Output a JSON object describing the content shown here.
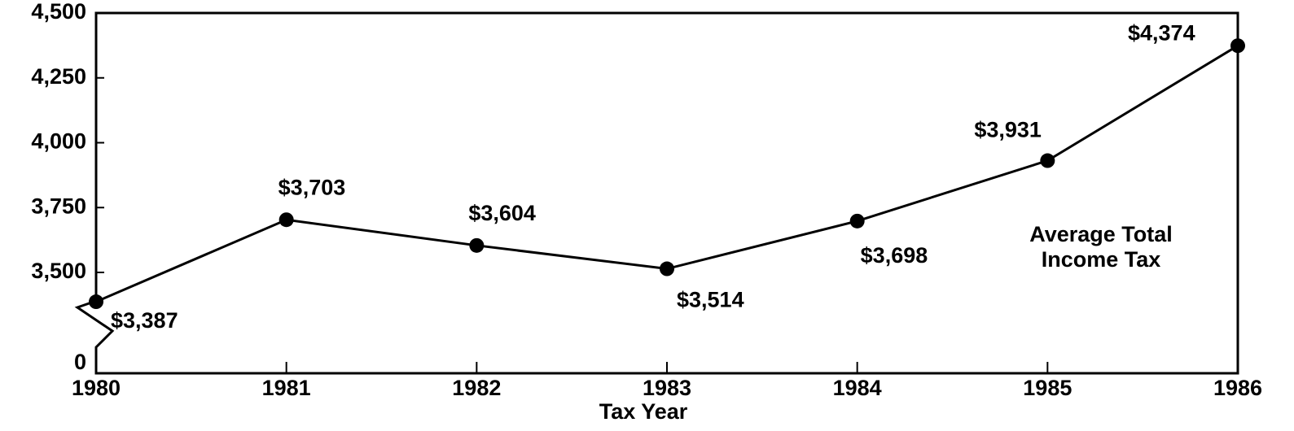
{
  "chart_data": {
    "type": "line",
    "x": [
      1980,
      1981,
      1982,
      1983,
      1984,
      1985,
      1986
    ],
    "values": [
      3387,
      3703,
      3604,
      3514,
      3698,
      3931,
      4374
    ],
    "value_labels": [
      "$3,387",
      "$3,703",
      "$3,604",
      "$3,514",
      "$3,698",
      "$3,931",
      "$4,374"
    ],
    "color": "#000000",
    "xlim": [
      1980,
      1986
    ],
    "xticks": [
      1980,
      1981,
      1982,
      1983,
      1984,
      1985,
      1986
    ],
    "ylim": [
      0,
      4500
    ],
    "yticks": [
      0,
      {
        "value": 3500,
        "label": "3,500"
      },
      {
        "value": 3750,
        "label": "3,750"
      },
      {
        "value": 4000,
        "label": "4,000"
      },
      {
        "value": 4250,
        "label": "4,250"
      },
      {
        "value": 4500,
        "label": "4,500"
      }
    ],
    "axis_break": true,
    "xlabel": "Tax Year",
    "annotation": [
      "Average Total",
      "Income Tax"
    ]
  }
}
